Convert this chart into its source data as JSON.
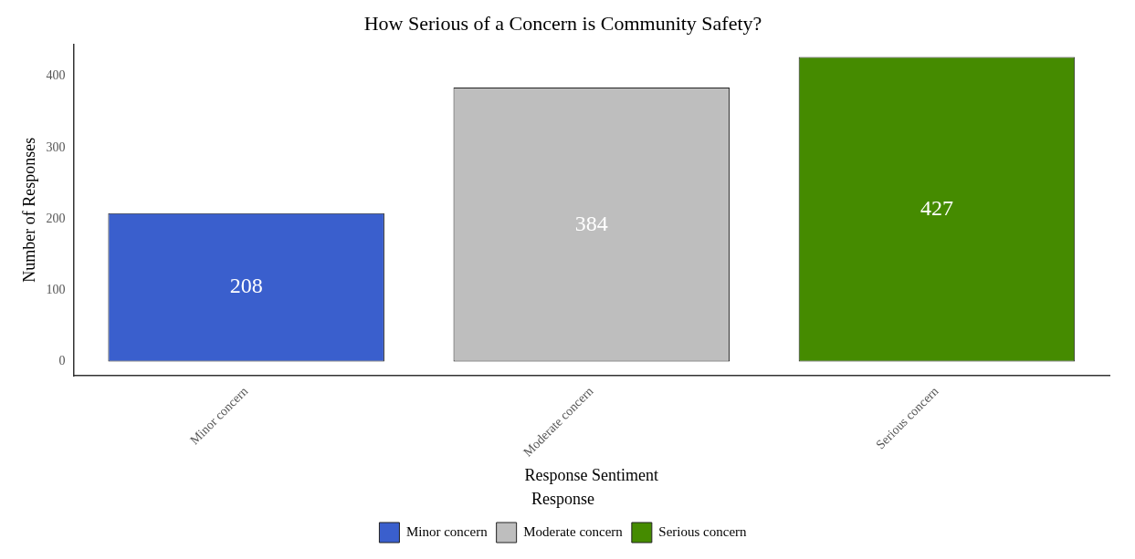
{
  "chart_data": {
    "type": "bar",
    "title": "How Serious of a Concern is Community Safety?",
    "xlabel": "Response Sentiment",
    "ylabel": "Number of Responses",
    "legend_title": "Response",
    "categories": [
      "Minor concern",
      "Moderate concern",
      "Serious concern"
    ],
    "series": [
      {
        "name": "Minor concern",
        "color": "#3a5fcd",
        "values": [
          208,
          null,
          null
        ]
      },
      {
        "name": "Moderate concern",
        "color": "#bebebe",
        "values": [
          null,
          384,
          null
        ]
      },
      {
        "name": "Serious concern",
        "color": "#458b00",
        "values": [
          null,
          null,
          427
        ]
      }
    ],
    "ylim": [
      -20,
      445
    ],
    "yticks": [
      0,
      100,
      200,
      300,
      400
    ],
    "grid": false,
    "legend": "bottom",
    "data_labels": true
  }
}
